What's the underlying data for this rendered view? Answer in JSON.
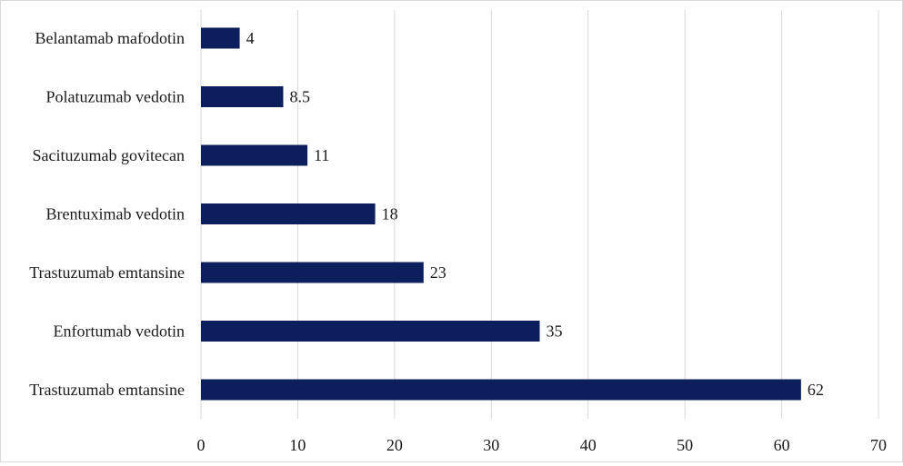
{
  "chart_data": {
    "type": "bar",
    "orientation": "horizontal",
    "categories": [
      "Belantamab mafodotin",
      "Polatuzumab vedotin",
      "Sacituzumab govitecan",
      "Brentuximab vedotin",
      "Trastuzumab emtansine",
      "Enfortumab vedotin",
      "Trastuzumab emtansine"
    ],
    "values": [
      4,
      8.5,
      11,
      18,
      23,
      35,
      62
    ],
    "value_labels": [
      "4",
      "8.5",
      "11",
      "18",
      "23",
      "35",
      "62"
    ],
    "xticks": [
      "0",
      "10",
      "20",
      "30",
      "40",
      "50",
      "60",
      "70"
    ],
    "xlim": [
      0,
      70
    ],
    "title": "",
    "xlabel": "",
    "ylabel": "",
    "grid": "vertical",
    "legend": "none",
    "bar_color": "#0c1f5c",
    "grid_color": "#d9d9d9"
  }
}
